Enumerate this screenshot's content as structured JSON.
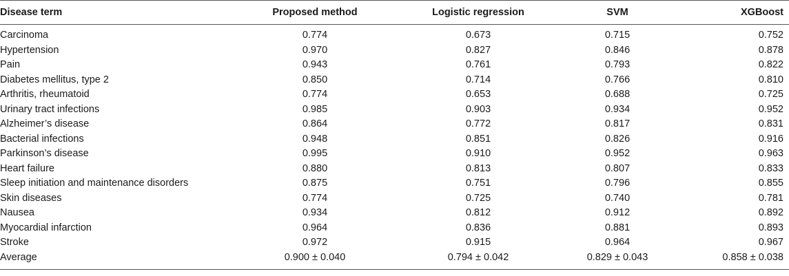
{
  "table": {
    "headers": [
      "Disease term",
      "Proposed method",
      "Logistic regression",
      "SVM",
      "XGBoost"
    ],
    "rows": [
      [
        "Carcinoma",
        "0.774",
        "0.673",
        "0.715",
        "0.752"
      ],
      [
        "Hypertension",
        "0.970",
        "0.827",
        "0.846",
        "0.878"
      ],
      [
        "Pain",
        "0.943",
        "0.761",
        "0.793",
        "0.822"
      ],
      [
        "Diabetes mellitus, type 2",
        "0.850",
        "0.714",
        "0.766",
        "0.810"
      ],
      [
        "Arthritis, rheumatoid",
        "0.774",
        "0.653",
        "0.688",
        "0.725"
      ],
      [
        "Urinary tract infections",
        "0.985",
        "0.903",
        "0.934",
        "0.952"
      ],
      [
        "Alzheimer’s disease",
        "0.864",
        "0.772",
        "0.817",
        "0.831"
      ],
      [
        "Bacterial infections",
        "0.948",
        "0.851",
        "0.826",
        "0.916"
      ],
      [
        "Parkinson’s disease",
        "0.995",
        "0.910",
        "0.952",
        "0.963"
      ],
      [
        "Heart failure",
        "0.880",
        "0.813",
        "0.807",
        "0.833"
      ],
      [
        "Sleep initiation and maintenance disorders",
        "0.875",
        "0.751",
        "0.796",
        "0.855"
      ],
      [
        "Skin diseases",
        "0.774",
        "0.725",
        "0.740",
        "0.781"
      ],
      [
        "Nausea",
        "0.934",
        "0.812",
        "0.912",
        "0.892"
      ],
      [
        "Myocardial infarction",
        "0.964",
        "0.836",
        "0.881",
        "0.893"
      ],
      [
        "Stroke",
        "0.972",
        "0.915",
        "0.964",
        "0.967"
      ],
      [
        "Average",
        "0.900 ± 0.040",
        "0.794 ± 0.042",
        "0.829 ± 0.043",
        "0.858 ± 0.038"
      ]
    ]
  }
}
